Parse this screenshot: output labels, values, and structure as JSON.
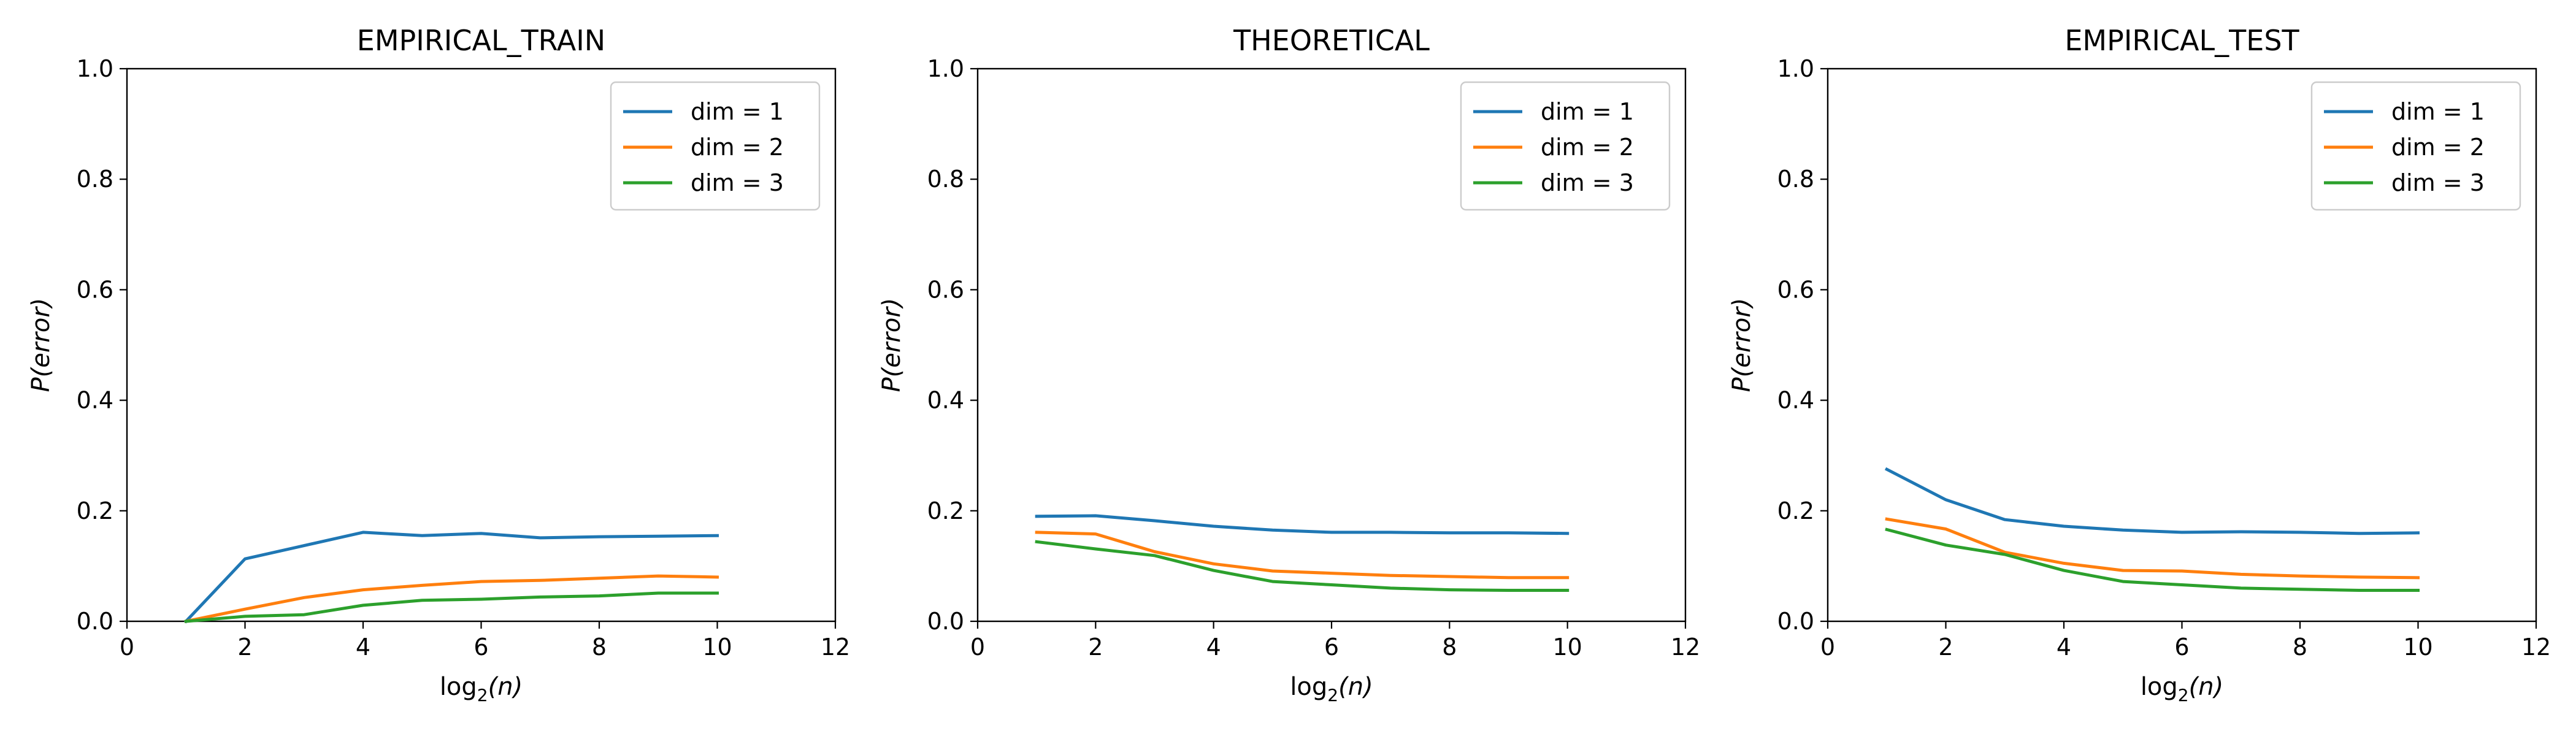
{
  "chart_data": [
    {
      "type": "line",
      "title": "EMPIRICAL_TRAIN",
      "xlabel": {
        "main": "log",
        "sub": "2",
        "arg": "(n)"
      },
      "ylabel": "P(error)",
      "xlim": [
        0,
        12
      ],
      "ylim": [
        0,
        1.0
      ],
      "xticks": [
        "0",
        "2",
        "4",
        "6",
        "8",
        "10",
        "12"
      ],
      "yticks": [
        "0.0",
        "0.2",
        "0.4",
        "0.6",
        "0.8",
        "1.0"
      ],
      "legend": "top-right",
      "grid": false,
      "x": [
        1,
        2,
        3,
        4,
        5,
        6,
        7,
        8,
        9,
        10
      ],
      "series": [
        {
          "name": "dim = 1",
          "color": "#1f77b4",
          "values": [
            0.0,
            0.113,
            0.137,
            0.161,
            0.155,
            0.159,
            0.151,
            0.153,
            0.154,
            0.155
          ]
        },
        {
          "name": "dim = 2",
          "color": "#ff7f0e",
          "values": [
            0.0,
            0.022,
            0.043,
            0.057,
            0.065,
            0.072,
            0.074,
            0.078,
            0.082,
            0.08
          ]
        },
        {
          "name": "dim = 3",
          "color": "#2ca02c",
          "values": [
            0.0,
            0.009,
            0.012,
            0.029,
            0.038,
            0.04,
            0.044,
            0.046,
            0.051,
            0.051
          ]
        }
      ]
    },
    {
      "type": "line",
      "title": "THEORETICAL",
      "xlabel": {
        "main": "log",
        "sub": "2",
        "arg": "(n)"
      },
      "ylabel": "P(error)",
      "xlim": [
        0,
        12
      ],
      "ylim": [
        0,
        1.0
      ],
      "xticks": [
        "0",
        "2",
        "4",
        "6",
        "8",
        "10",
        "12"
      ],
      "yticks": [
        "0.0",
        "0.2",
        "0.4",
        "0.6",
        "0.8",
        "1.0"
      ],
      "legend": "top-right",
      "grid": false,
      "x": [
        1,
        2,
        3,
        4,
        5,
        6,
        7,
        8,
        9,
        10
      ],
      "series": [
        {
          "name": "dim = 1",
          "color": "#1f77b4",
          "values": [
            0.19,
            0.191,
            0.182,
            0.172,
            0.165,
            0.161,
            0.161,
            0.16,
            0.16,
            0.159
          ]
        },
        {
          "name": "dim = 2",
          "color": "#ff7f0e",
          "values": [
            0.161,
            0.158,
            0.126,
            0.104,
            0.091,
            0.087,
            0.083,
            0.081,
            0.079,
            0.079
          ]
        },
        {
          "name": "dim = 3",
          "color": "#2ca02c",
          "values": [
            0.144,
            0.131,
            0.119,
            0.092,
            0.072,
            0.066,
            0.06,
            0.057,
            0.056,
            0.056
          ]
        }
      ]
    },
    {
      "type": "line",
      "title": "EMPIRICAL_TEST",
      "xlabel": {
        "main": "log",
        "sub": "2",
        "arg": "(n)"
      },
      "ylabel": "P(error)",
      "xlim": [
        0,
        12
      ],
      "ylim": [
        0,
        1.0
      ],
      "xticks": [
        "0",
        "2",
        "4",
        "6",
        "8",
        "10",
        "12"
      ],
      "yticks": [
        "0.0",
        "0.2",
        "0.4",
        "0.6",
        "0.8",
        "1.0"
      ],
      "legend": "top-right",
      "grid": false,
      "x": [
        1,
        2,
        3,
        4,
        5,
        6,
        7,
        8,
        9,
        10
      ],
      "series": [
        {
          "name": "dim = 1",
          "color": "#1f77b4",
          "values": [
            0.275,
            0.22,
            0.184,
            0.172,
            0.165,
            0.161,
            0.162,
            0.161,
            0.159,
            0.16
          ]
        },
        {
          "name": "dim = 2",
          "color": "#ff7f0e",
          "values": [
            0.185,
            0.167,
            0.125,
            0.105,
            0.092,
            0.091,
            0.085,
            0.082,
            0.08,
            0.079
          ]
        },
        {
          "name": "dim = 3",
          "color": "#2ca02c",
          "values": [
            0.166,
            0.138,
            0.121,
            0.092,
            0.072,
            0.066,
            0.06,
            0.058,
            0.056,
            0.056
          ]
        }
      ]
    }
  ]
}
